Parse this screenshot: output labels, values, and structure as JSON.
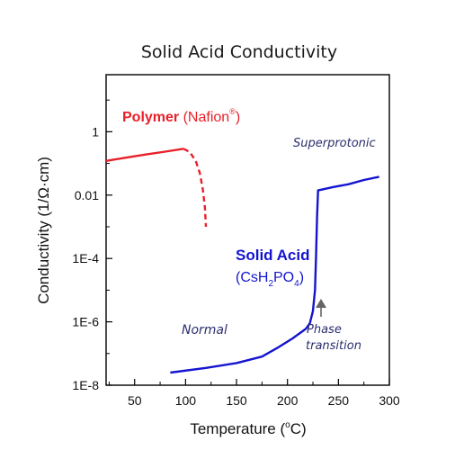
{
  "chart_data": {
    "type": "line",
    "title": "Solid Acid Conductivity",
    "xlabel": {
      "text": "Temperature (",
      "sup": "o",
      "tail": "C)"
    },
    "ylabel": "Conductivity (1/Ω·cm)",
    "xlim": [
      22,
      300
    ],
    "ylim_log10": [
      -8,
      1.8
    ],
    "yscale": "log",
    "x_ticks": [
      50,
      100,
      150,
      200,
      250,
      300
    ],
    "y_ticks": [
      {
        "value": 1,
        "label": "1"
      },
      {
        "value": 0.01,
        "label": "0.01"
      },
      {
        "value": 0.0001,
        "label": "1E-4"
      },
      {
        "value": 1e-06,
        "label": "1E-6"
      },
      {
        "value": 1e-08,
        "label": "1E-8"
      }
    ],
    "series": [
      {
        "name": "Polymer (Nafion®)",
        "color": "#e8202a",
        "style": "solid",
        "points": [
          [
            22,
            0.12
          ],
          [
            40,
            0.15
          ],
          [
            60,
            0.19
          ],
          [
            80,
            0.235
          ],
          [
            98,
            0.29
          ]
        ]
      },
      {
        "name": "Polymer (Nafion®) decline",
        "color": "#e8202a",
        "style": "dashed",
        "points": [
          [
            98,
            0.29
          ],
          [
            104,
            0.23
          ],
          [
            110,
            0.12
          ],
          [
            114,
            0.05
          ],
          [
            117,
            0.015
          ],
          [
            119,
            0.004
          ],
          [
            120,
            0.001
          ]
        ]
      },
      {
        "name": "Solid Acid (CsH2PO4)",
        "color": "#1414d0",
        "style": "solid",
        "points": [
          [
            85,
            2.5e-08
          ],
          [
            120,
            3.5e-08
          ],
          [
            150,
            5e-08
          ],
          [
            175,
            8e-08
          ],
          [
            190,
            1.5e-07
          ],
          [
            205,
            3e-07
          ],
          [
            218,
            6e-07
          ],
          [
            222,
            9e-07
          ],
          [
            225,
            2.2e-06
          ],
          [
            227,
            1e-05
          ],
          [
            228,
            0.0001
          ],
          [
            229,
            0.002
          ],
          [
            230,
            0.014
          ],
          [
            245,
            0.018
          ],
          [
            260,
            0.022
          ],
          [
            275,
            0.03
          ],
          [
            290,
            0.038
          ]
        ]
      }
    ],
    "annotations": {
      "polymer": {
        "bold": "Polymer",
        "rest": " (Nafion",
        "sup": "®",
        "close": ")",
        "color": "#e8202a"
      },
      "solid_acid": {
        "line1": "Solid Acid",
        "formula_parts": [
          "(CsH",
          "2",
          "PO",
          "4",
          ")"
        ],
        "color": "#1414d0"
      },
      "superprotonic": "Superprotonic",
      "normal": "Normal",
      "phase_transition": [
        "Phase",
        "transition"
      ]
    }
  }
}
